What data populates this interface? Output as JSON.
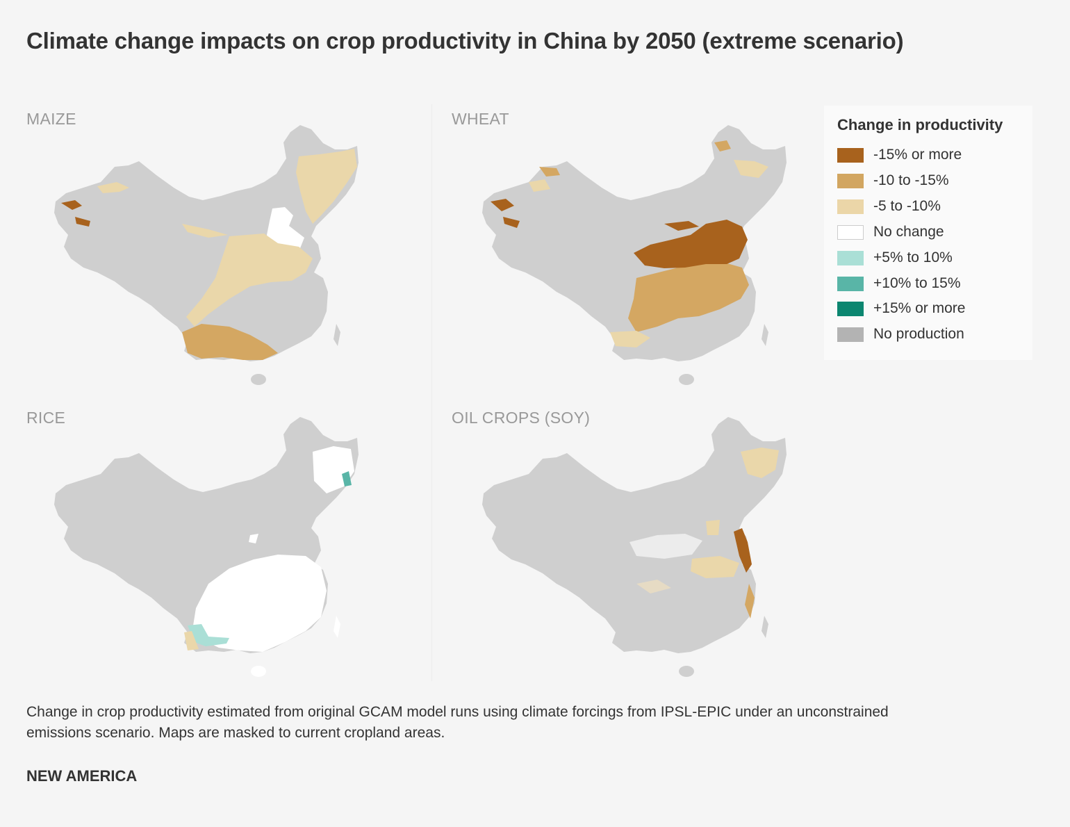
{
  "title": "Climate change impacts on crop productivity in China by 2050 (extreme scenario)",
  "panels": [
    {
      "label": "MAIZE"
    },
    {
      "label": "WHEAT"
    },
    {
      "label": "RICE"
    },
    {
      "label": "OIL CROPS (SOY)"
    }
  ],
  "legend": {
    "title": "Change in productivity",
    "items": [
      {
        "label": "-15% or more",
        "color": "#a8621d"
      },
      {
        "label": "-10 to -15%",
        "color": "#d2a661"
      },
      {
        "label": "-5 to -10%",
        "color": "#ebd6a8"
      },
      {
        "label": "No change",
        "color": "#ffffff"
      },
      {
        "label": "+5% to 10%",
        "color": "#aadfd6"
      },
      {
        "label": "+10% to 15%",
        "color": "#59b5a7"
      },
      {
        "label": "+15% or more",
        "color": "#0c8670"
      },
      {
        "label": "No production",
        "color": "#b3b3b3"
      }
    ]
  },
  "caption": "Change in crop productivity estimated from original GCAM model runs using climate forcings from IPSL-EPIC under an unconstrained emissions scenario. Maps are masked to current cropland areas.",
  "brand": "NEW AMERICA"
}
